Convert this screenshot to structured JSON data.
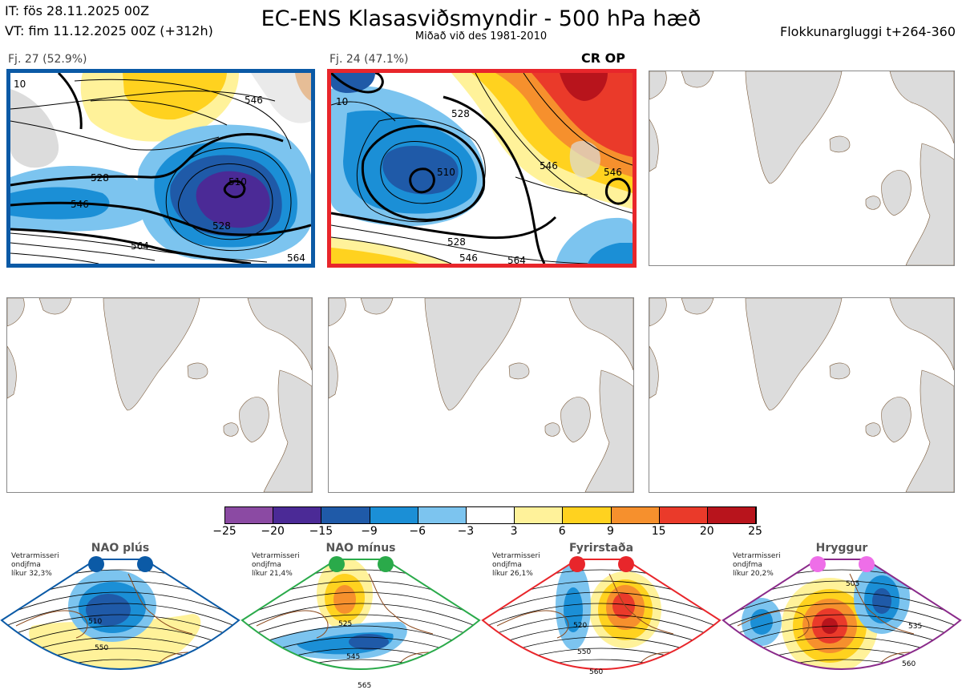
{
  "header": {
    "it_line": "IT: fös 28.11.2025 00Z",
    "vt_line": "VT: fim 11.12.2025 00Z  (+312h)",
    "title": "EC-ENS Klasasviðsmyndir - 500 hPa hæð",
    "subtitle": "Miðað við des 1981-2010",
    "window": "Flokkunargluggi t+264-360"
  },
  "clusters": [
    {
      "label": "Fj. 27 (52.9%)",
      "frame_color": "#0b5aa6",
      "tag": "",
      "contours": [
        "510",
        "528",
        "546",
        "564",
        "10",
        "528",
        "546",
        "564"
      ]
    },
    {
      "label": "Fj. 24 (47.1%)",
      "frame_color": "#e8262b",
      "tag": "CR OP",
      "contours": [
        "10",
        "528",
        "510",
        "546",
        "546",
        "528",
        "546",
        "564"
      ]
    }
  ],
  "colorbar": {
    "ticks": [
      "−25",
      "−20",
      "−15",
      "−9",
      "−6",
      "−3",
      "3",
      "6",
      "9",
      "15",
      "20",
      "25"
    ],
    "colors": [
      "#8b4aa3",
      "#4b2a96",
      "#1f5aa8",
      "#1b8fd6",
      "#7cc4ef",
      "#ffffff",
      "#fff29a",
      "#ffd21f",
      "#f6902d",
      "#ea3a2a",
      "#b8141c"
    ]
  },
  "regimes": [
    {
      "name": "NAO plús",
      "stats": "Vetrarmisseri\nondjfma\nlíkur 32,3%",
      "frame": "#0b5aa6",
      "dot": "#0b5aa6",
      "contours": [
        "510",
        "550"
      ]
    },
    {
      "name": "NAO mínus",
      "stats": "Vetrarmisseri\nondjfma\nlíkur 21,4%",
      "frame": "#2aaa4a",
      "dot": "#2aaa4a",
      "contours": [
        "525",
        "545",
        "565"
      ]
    },
    {
      "name": "Fyrirstaða",
      "stats": "Vetrarmisseri\nondjfma\nlíkur 26,1%",
      "frame": "#e8262b",
      "dot": "#e8262b",
      "contours": [
        "520",
        "550",
        "560"
      ]
    },
    {
      "name": "Hryggur",
      "stats": "Vetrarmisseri\nondjfma\nlíkur 20,2%",
      "frame": "#8a2a8a",
      "dot": "#ee6ee8",
      "contours": [
        "505",
        "535",
        "560"
      ]
    }
  ]
}
